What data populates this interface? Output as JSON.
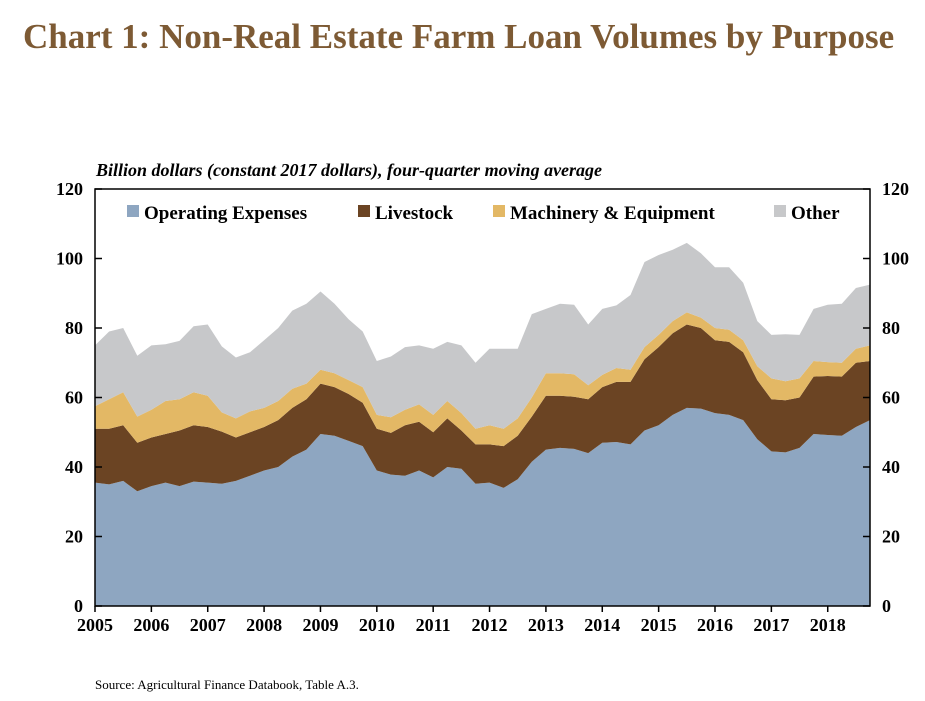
{
  "title": "Chart 1: Non-Real Estate Farm Loan Volumes by Purpose",
  "subtitle": "Billion dollars (constant 2017 dollars), four-quarter moving average",
  "source": "Source: Agricultural Finance Databook, Table A.3.",
  "chart_data": {
    "type": "area",
    "stacked": true,
    "xlim": [
      2005,
      2018.75
    ],
    "ylim": [
      0,
      120
    ],
    "y_ticks": [
      0,
      20,
      40,
      60,
      80,
      100,
      120
    ],
    "x_tick_labels": [
      "2005",
      "2006",
      "2007",
      "2008",
      "2009",
      "2010",
      "2011",
      "2012",
      "2013",
      "2014",
      "2015",
      "2016",
      "2017",
      "2018"
    ],
    "grid": false,
    "legend_position": "top",
    "y_axis_both_sides": true,
    "x": [
      2005.0,
      2005.25,
      2005.5,
      2005.75,
      2006.0,
      2006.25,
      2006.5,
      2006.75,
      2007.0,
      2007.25,
      2007.5,
      2007.75,
      2008.0,
      2008.25,
      2008.5,
      2008.75,
      2009.0,
      2009.25,
      2009.5,
      2009.75,
      2010.0,
      2010.25,
      2010.5,
      2010.75,
      2011.0,
      2011.25,
      2011.5,
      2011.75,
      2012.0,
      2012.25,
      2012.5,
      2012.75,
      2013.0,
      2013.25,
      2013.5,
      2013.75,
      2014.0,
      2014.25,
      2014.5,
      2014.75,
      2015.0,
      2015.25,
      2015.5,
      2015.75,
      2016.0,
      2016.25,
      2016.5,
      2016.75,
      2017.0,
      2017.25,
      2017.5,
      2017.75,
      2018.0,
      2018.25,
      2018.5,
      2018.75
    ],
    "series": [
      {
        "name": "Operating Expenses",
        "color": "#8ea6c1",
        "values": [
          35.5,
          35.0,
          36.0,
          33.0,
          34.5,
          35.5,
          34.5,
          35.8,
          35.5,
          35.2,
          36.0,
          37.5,
          39.0,
          40.0,
          43.0,
          45.0,
          49.5,
          49.0,
          47.5,
          46.0,
          39.0,
          37.8,
          37.5,
          39.0,
          37.0,
          40.0,
          39.5,
          35.2,
          35.5,
          34.0,
          36.5,
          41.5,
          45.0,
          45.5,
          45.2,
          44.0,
          47.0,
          47.2,
          46.5,
          50.5,
          52.0,
          55.0,
          57.0,
          56.8,
          55.5,
          55.0,
          53.5,
          48.0,
          44.5,
          44.2,
          45.5,
          49.5,
          49.2,
          49.0,
          51.5,
          53.5
        ]
      },
      {
        "name": "Livestock",
        "color": "#6b4423",
        "values": [
          15.5,
          16.0,
          16.0,
          14.0,
          14.0,
          14.0,
          16.0,
          16.2,
          16.0,
          15.0,
          12.5,
          12.5,
          12.5,
          13.5,
          14.0,
          14.5,
          14.5,
          14.0,
          13.5,
          12.5,
          12.0,
          12.0,
          14.5,
          14.0,
          13.0,
          14.0,
          11.0,
          11.3,
          11.0,
          12.0,
          12.5,
          13.0,
          15.5,
          15.0,
          15.0,
          15.5,
          16.0,
          17.3,
          18.0,
          20.5,
          22.5,
          23.5,
          24.0,
          23.2,
          21.0,
          21.0,
          19.5,
          17.0,
          15.0,
          15.0,
          14.5,
          16.5,
          17.0,
          17.0,
          18.5,
          17.0
        ]
      },
      {
        "name": "Machinery & Equipment",
        "color": "#e3b865",
        "values": [
          6.5,
          8.5,
          9.5,
          7.5,
          8.0,
          9.5,
          9.0,
          9.5,
          9.0,
          5.5,
          5.5,
          6.0,
          5.5,
          5.5,
          5.5,
          4.5,
          4.0,
          4.0,
          4.0,
          4.5,
          4.0,
          4.5,
          4.5,
          5.0,
          5.0,
          5.0,
          5.0,
          4.5,
          5.5,
          5.0,
          5.0,
          5.5,
          6.5,
          6.5,
          6.5,
          4.0,
          3.5,
          4.0,
          3.5,
          3.5,
          3.5,
          3.5,
          3.5,
          3.0,
          3.5,
          3.5,
          3.5,
          4.0,
          6.0,
          5.5,
          5.5,
          4.5,
          4.0,
          4.0,
          4.0,
          4.5
        ]
      },
      {
        "name": "Other",
        "color": "#c7c8ca",
        "values": [
          17.5,
          19.5,
          18.5,
          17.5,
          18.5,
          16.3,
          16.8,
          19.0,
          20.5,
          19.0,
          17.5,
          17.0,
          19.5,
          21.0,
          22.5,
          23.0,
          22.5,
          20.0,
          17.5,
          16.0,
          15.5,
          17.5,
          18.0,
          17.0,
          19.0,
          17.0,
          19.5,
          19.0,
          22.0,
          23.0,
          20.0,
          24.0,
          18.5,
          20.0,
          20.0,
          17.5,
          19.0,
          18.0,
          21.5,
          24.5,
          23.0,
          20.5,
          20.0,
          18.5,
          17.5,
          18.0,
          16.5,
          13.0,
          12.5,
          13.5,
          12.5,
          15.0,
          16.5,
          17.0,
          17.5,
          17.5
        ]
      }
    ]
  }
}
